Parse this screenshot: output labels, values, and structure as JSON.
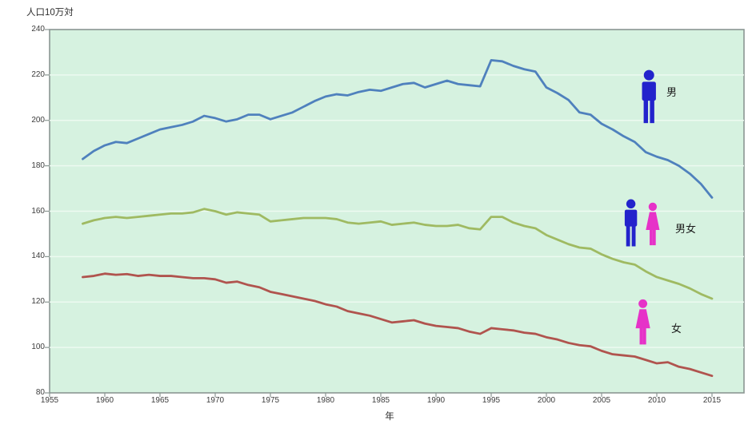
{
  "title": "人口10万対",
  "x_axis_title": "年",
  "legend": {
    "male_label": "男",
    "both_label": "男女",
    "female_label": "女"
  },
  "colors": {
    "male_line": "#4f81bd",
    "both_line": "#9fba62",
    "female_line": "#b0544e",
    "male_icon": "#2323cc",
    "female_icon": "#e632c8",
    "plot_bg": "#d6f2e0",
    "gridline": "#edfaf1",
    "axis": "#8a9692",
    "text": "#3c3c3c"
  },
  "chart_data": {
    "type": "line",
    "title": "人口10万対",
    "xlabel": "年",
    "ylabel": "人口10万対",
    "grid": true,
    "legend_position": "right-inside",
    "xlim": [
      1955,
      2018
    ],
    "ylim": [
      80,
      240
    ],
    "x_ticks": [
      1955,
      1960,
      1965,
      1970,
      1975,
      1980,
      1985,
      1990,
      1995,
      2000,
      2005,
      2010,
      2015
    ],
    "y_ticks": [
      240,
      220,
      200,
      180,
      160,
      140,
      120,
      100,
      80
    ],
    "years": [
      1958,
      1959,
      1960,
      1961,
      1962,
      1963,
      1964,
      1965,
      1966,
      1967,
      1968,
      1969,
      1970,
      1971,
      1972,
      1973,
      1974,
      1975,
      1976,
      1977,
      1978,
      1979,
      1980,
      1981,
      1982,
      1983,
      1984,
      1985,
      1986,
      1987,
      1988,
      1989,
      1990,
      1991,
      1992,
      1993,
      1994,
      1995,
      1996,
      1997,
      1998,
      1999,
      2000,
      2001,
      2002,
      2003,
      2004,
      2005,
      2006,
      2007,
      2008,
      2009,
      2010,
      2011,
      2012,
      2013,
      2014,
      2015
    ],
    "series": [
      {
        "name": "男",
        "color_key": "male_line",
        "values": [
          183,
          186.5,
          189,
          190.5,
          190,
          192,
          194,
          196,
          197,
          198,
          199.5,
          202,
          201,
          199.5,
          200.5,
          202.5,
          202.5,
          200.5,
          202,
          203.5,
          206,
          208.5,
          210.5,
          211.5,
          211,
          212.5,
          213.5,
          213,
          214.5,
          216,
          216.5,
          214.5,
          216,
          217.5,
          216,
          215.5,
          215,
          226.5,
          226,
          224,
          222.5,
          221.5,
          214.5,
          212,
          209,
          203.5,
          202.5,
          198.5,
          196,
          193,
          190.5,
          186,
          184,
          182.5,
          180,
          176.5,
          172,
          166
        ]
      },
      {
        "name": "男女",
        "color_key": "both_line",
        "values": [
          154.5,
          156,
          157,
          157.5,
          157,
          157.5,
          158,
          158.5,
          159,
          159,
          159.5,
          161,
          160,
          158.5,
          159.5,
          159,
          158.5,
          155.5,
          156,
          156.5,
          157,
          157,
          157,
          156.5,
          155,
          154.5,
          155,
          155.5,
          154,
          154.5,
          155,
          154,
          153.5,
          153.5,
          154,
          152.5,
          152,
          157.5,
          157.5,
          155,
          153.5,
          152.5,
          149.5,
          147.5,
          145.5,
          144,
          143.5,
          141,
          139,
          137.5,
          136.5,
          133.5,
          131,
          129.5,
          128,
          126,
          123.5,
          121.5
        ]
      },
      {
        "name": "女",
        "color_key": "female_line",
        "values": [
          131,
          131.5,
          132.5,
          132,
          132.3,
          131.5,
          132,
          131.5,
          131.5,
          131,
          130.5,
          130.5,
          130,
          128.5,
          129,
          127.5,
          126.5,
          124.5,
          123.5,
          122.5,
          121.5,
          120.5,
          119,
          118,
          116,
          115,
          114,
          112.5,
          111,
          111.5,
          112,
          110.5,
          109.5,
          109,
          108.5,
          107,
          106,
          108.5,
          108,
          107.5,
          106.5,
          106,
          104.5,
          103.5,
          102,
          101,
          100.5,
          98.5,
          97,
          96.5,
          96,
          94.5,
          93,
          93.5,
          91.5,
          90.5,
          89,
          87.5
        ]
      }
    ]
  }
}
